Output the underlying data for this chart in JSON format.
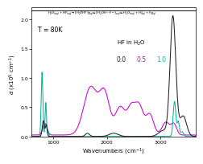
{
  "xlabel": "Wavenumbers (cm$^{-1}$)",
  "ylabel": "$\\alpha$ (x10$^5$ cm$^{-1}$)",
  "annotation": "T = 80K",
  "legend_title": "HF in H$_2$O",
  "legend_labels": [
    "0.0",
    "0.5",
    "1.0"
  ],
  "legend_colors": [
    "#222222",
    "#cc00cc",
    "#00b899"
  ],
  "xlim": [
    600,
    3650
  ],
  "ylim": [
    0,
    2.15
  ],
  "yticks": [
    0,
    0.5,
    1.0,
    1.5,
    2.0
  ],
  "xticks": [
    1000,
    2000,
    3000
  ],
  "background_color": "#ffffff",
  "header_text": "H$_2$O$_{(aq)}$+HF$_{(aq)}$\\u21cc[H$_2$OHF]$^-_{(aq)}$\\u21cc[H$_2$OH\\u00b7\\u00b7\\u00b7F$^-$]$_{(aq)}$\\u21ccH$_2$O$_{(aq)}$+H$^+_{(aq)}$+F$^-_{(aq)}$"
}
